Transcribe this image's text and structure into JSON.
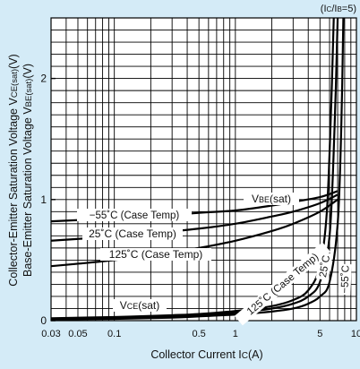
{
  "chart_data": {
    "type": "line",
    "title": "",
    "subtitle": "(IC/IB=5)",
    "condition": {
      "main": "(I",
      "sub1": "C",
      "mid": "/I",
      "sub2": "B",
      "tail": "=5)"
    },
    "xlabel": {
      "main": "Collector Current I",
      "sub": "C",
      "tail": "(A)"
    },
    "ylabel_line1": {
      "main": "Collector-Emitter Saturation Voltage V",
      "sub": "CE(sat)",
      "tail": "(V)"
    },
    "ylabel_line2": {
      "main": "Base-Emitter Saturation Voltage V",
      "sub": "BE(sat)",
      "tail": "(V)"
    },
    "x_scale": "log",
    "xlim": [
      0.03,
      10
    ],
    "ylim": [
      0,
      2.5
    ],
    "x_tick_labels": [
      {
        "value": 0.03,
        "label": "0.03"
      },
      {
        "value": 0.05,
        "label": "0.05"
      },
      {
        "value": 0.1,
        "label": "0.1"
      },
      {
        "value": 0.5,
        "label": "0.5"
      },
      {
        "value": 1,
        "label": "1"
      },
      {
        "value": 5,
        "label": "5"
      },
      {
        "value": 10,
        "label": "10"
      }
    ],
    "y_tick_labels": [
      {
        "value": 0,
        "label": "0"
      },
      {
        "value": 1,
        "label": "1"
      },
      {
        "value": 2,
        "label": "2"
      }
    ],
    "grid": true,
    "series": [
      {
        "name": "-55˚C (Case Temp)",
        "group": "VBE(sat)",
        "x": [
          0.03,
          0.05,
          0.1,
          0.2,
          0.5,
          1,
          2,
          3,
          5,
          7
        ],
        "y": [
          0.82,
          0.83,
          0.84,
          0.86,
          0.89,
          0.91,
          0.95,
          0.98,
          1.02,
          1.07
        ]
      },
      {
        "name": "25˚C (Case Temp)",
        "group": "VBE(sat)",
        "x": [
          0.03,
          0.05,
          0.1,
          0.2,
          0.5,
          1,
          2,
          3,
          5,
          7
        ],
        "y": [
          0.66,
          0.675,
          0.695,
          0.72,
          0.76,
          0.8,
          0.86,
          0.9,
          0.97,
          1.04
        ]
      },
      {
        "name": "125˚C (Case Temp)",
        "group": "VBE(sat)",
        "x": [
          0.03,
          0.05,
          0.1,
          0.2,
          0.5,
          1,
          2,
          3,
          5,
          7
        ],
        "y": [
          0.45,
          0.47,
          0.5,
          0.54,
          0.6,
          0.66,
          0.74,
          0.8,
          0.9,
          1.0
        ]
      },
      {
        "name": "125˚C (Case Temp)",
        "group": "VCE(sat)",
        "x": [
          0.03,
          0.1,
          0.3,
          0.5,
          1,
          2,
          3,
          4,
          5,
          5.7,
          6.2,
          6.5
        ],
        "y": [
          0.02,
          0.03,
          0.045,
          0.055,
          0.08,
          0.12,
          0.17,
          0.25,
          0.45,
          0.9,
          1.8,
          2.5
        ]
      },
      {
        "name": "25˚C",
        "group": "VCE(sat)",
        "x": [
          0.03,
          0.1,
          0.3,
          0.5,
          1,
          2,
          3,
          4,
          5,
          6,
          6.6,
          7.0
        ],
        "y": [
          0.015,
          0.02,
          0.035,
          0.045,
          0.065,
          0.1,
          0.14,
          0.2,
          0.32,
          0.7,
          1.6,
          2.5
        ]
      },
      {
        "name": "-55˚C",
        "group": "VCE(sat)",
        "x": [
          0.03,
          0.1,
          0.3,
          0.5,
          1,
          2,
          3,
          4,
          5,
          6,
          7,
          7.5,
          7.8
        ],
        "y": [
          0.01,
          0.015,
          0.025,
          0.035,
          0.05,
          0.075,
          0.1,
          0.14,
          0.2,
          0.32,
          0.8,
          1.6,
          2.5
        ]
      }
    ],
    "annotations": [
      {
        "id": "vbe",
        "main": "V",
        "sub": "BE",
        "tail": "(sat)"
      },
      {
        "id": "vce",
        "main": "V",
        "sub": "CE",
        "tail": "(sat)"
      },
      {
        "id": "vbe-m55",
        "text": "−55˚C (Case Temp)"
      },
      {
        "id": "vbe-25",
        "text": "25˚C (Case Temp)"
      },
      {
        "id": "vbe-125",
        "text": "125˚C (Case Temp)"
      },
      {
        "id": "vce-125",
        "text": "125˚C (Case Temp)"
      },
      {
        "id": "vce-25",
        "text": "25˚C"
      },
      {
        "id": "vce-m55",
        "text": "−55˚C"
      }
    ],
    "colors": {
      "background": "#d4ebf7",
      "plot": "#ffffff",
      "grid": "#000000",
      "line": "#000000"
    }
  }
}
